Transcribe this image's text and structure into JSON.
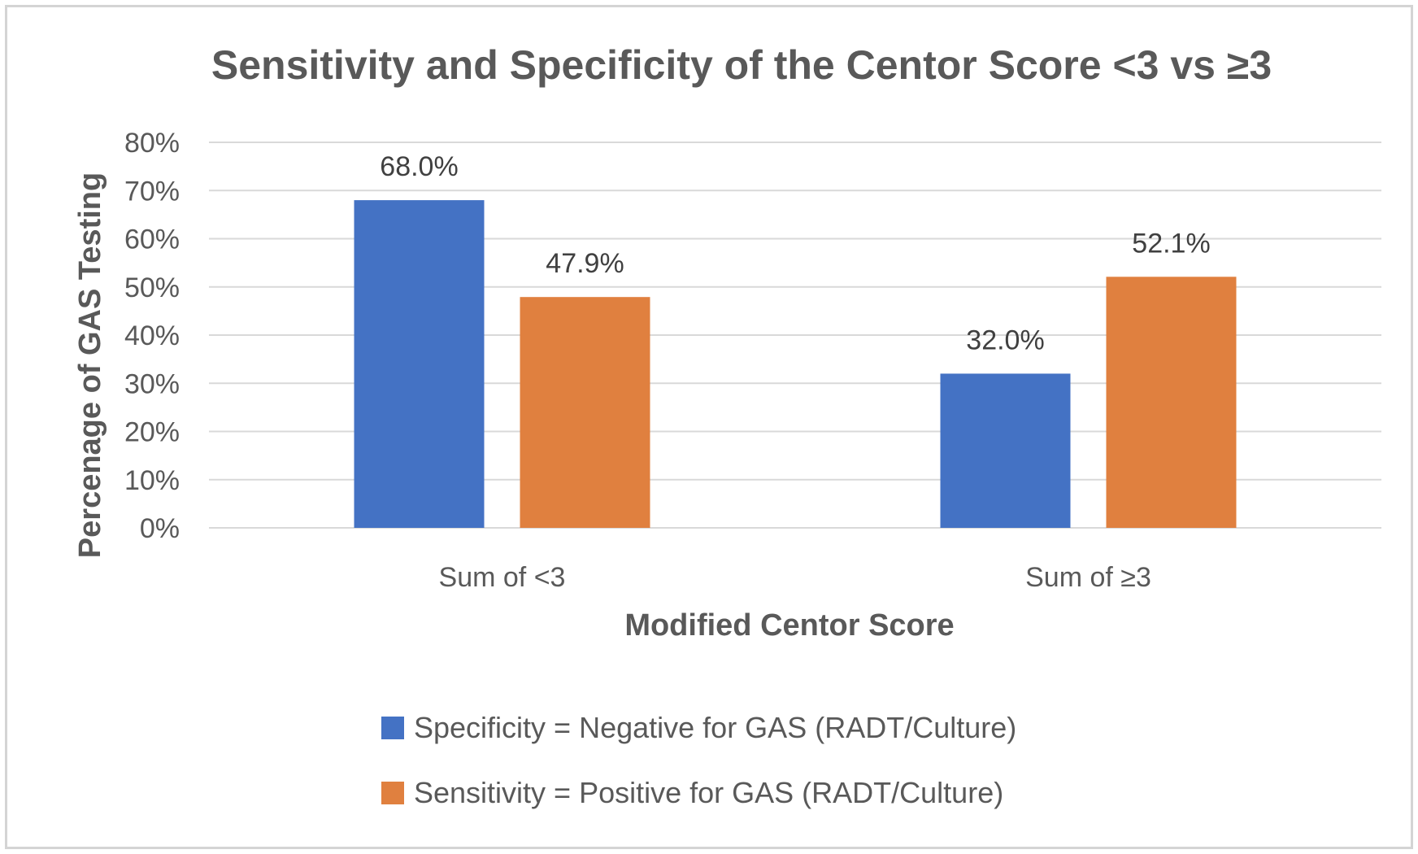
{
  "chart_data": {
    "type": "bar",
    "title": "Sensitivity and Specificity of the Centor Score <3 vs ≥3",
    "xlabel": "Modified Centor Score",
    "ylabel": "Percenage of GAS Testing",
    "categories": [
      "Sum of <3",
      "Sum of ≥3"
    ],
    "series": [
      {
        "name": "Specificity = Negative for GAS (RADT/Culture)",
        "color": "#4472c4",
        "values": [
          68.0,
          32.0
        ],
        "labels": [
          "68.0%",
          "32.0%"
        ]
      },
      {
        "name": "Sensitivity = Positive for GAS (RADT/Culture)",
        "color": "#e0803f",
        "values": [
          47.9,
          52.1
        ],
        "labels": [
          "47.9%",
          "52.1%"
        ]
      }
    ],
    "ylim": [
      0,
      80
    ],
    "yticks": [
      "0%",
      "10%",
      "20%",
      "30%",
      "40%",
      "50%",
      "60%",
      "70%",
      "80%"
    ],
    "grid": true,
    "legend_position": "bottom"
  }
}
